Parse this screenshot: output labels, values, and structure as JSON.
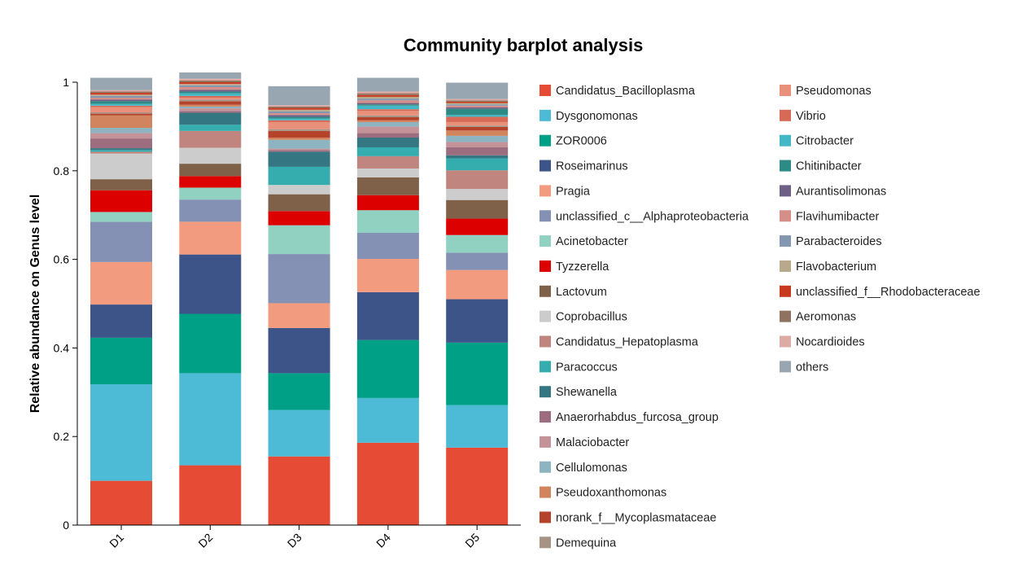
{
  "chart_data": {
    "type": "bar",
    "stacked": true,
    "title": "Community barplot analysis",
    "xlabel": "",
    "ylabel": "Relative abundance on Genus level",
    "ylim": [
      0,
      1
    ],
    "yticks": [
      0,
      0.2,
      0.4,
      0.6,
      0.8,
      1
    ],
    "ytick_labels": [
      "0",
      "0.2",
      "0.4",
      "0.6",
      "0.8",
      "1"
    ],
    "categories": [
      "D1",
      "D2",
      "D3",
      "D4",
      "D5"
    ],
    "legend_position": "right, two columns",
    "series": [
      {
        "name": "Candidatus_Bacilloplasma",
        "color": "#E64B35",
        "values": [
          0.1,
          0.135,
          0.155,
          0.186,
          0.175
        ]
      },
      {
        "name": "Dysgonomonas",
        "color": "#4DBBD5",
        "values": [
          0.218,
          0.208,
          0.105,
          0.101,
          0.096
        ]
      },
      {
        "name": "ZOR0006",
        "color": "#00A087",
        "values": [
          0.105,
          0.134,
          0.083,
          0.131,
          0.141
        ]
      },
      {
        "name": "Roseimarinus",
        "color": "#3C5488",
        "values": [
          0.075,
          0.134,
          0.102,
          0.108,
          0.098
        ]
      },
      {
        "name": "Pragia",
        "color": "#F39B7F",
        "values": [
          0.096,
          0.074,
          0.056,
          0.075,
          0.066
        ]
      },
      {
        "name": "unclassified_c__Alphaproteobacteria",
        "color": "#8491B4",
        "values": [
          0.091,
          0.05,
          0.111,
          0.059,
          0.039
        ]
      },
      {
        "name": "Acinetobacter",
        "color": "#91D1C2",
        "values": [
          0.022,
          0.027,
          0.065,
          0.051,
          0.04
        ]
      },
      {
        "name": "Tyzzerella",
        "color": "#DC0000",
        "values": [
          0.049,
          0.026,
          0.032,
          0.034,
          0.037
        ]
      },
      {
        "name": "Lactovum",
        "color": "#7E6148",
        "values": [
          0.025,
          0.028,
          0.038,
          0.04,
          0.042
        ]
      },
      {
        "name": "Coprobacillus",
        "color": "#CCCCCC",
        "values": [
          0.058,
          0.036,
          0.021,
          0.02,
          0.025
        ]
      },
      {
        "name": "Candidatus_Hepatoplasma",
        "color": "#C0857E",
        "values": [
          0.004,
          0.038,
          0.0,
          0.028,
          0.042
        ]
      },
      {
        "name": "Paracoccus",
        "color": "#35ACAE",
        "values": [
          0.004,
          0.014,
          0.041,
          0.02,
          0.027
        ]
      },
      {
        "name": "Shewanella",
        "color": "#357683",
        "values": [
          0.004,
          0.027,
          0.034,
          0.022,
          0.007
        ]
      },
      {
        "name": "Anaerorhabdus_furcosa_group",
        "color": "#9B6D7E",
        "values": [
          0.022,
          0.004,
          0.004,
          0.01,
          0.018
        ]
      },
      {
        "name": "Malaciobacter",
        "color": "#C4939A",
        "values": [
          0.012,
          0.006,
          0.003,
          0.015,
          0.012
        ]
      },
      {
        "name": "Cellulomonas",
        "color": "#8DB4C0",
        "values": [
          0.012,
          0.004,
          0.02,
          0.01,
          0.014
        ]
      },
      {
        "name": "Pseudoxanthomonas",
        "color": "#D2845E",
        "values": [
          0.028,
          0.004,
          0.005,
          0.004,
          0.012
        ]
      },
      {
        "name": "norank_f__Mycoplasmataceae",
        "color": "#B5432C",
        "values": [
          0.004,
          0.008,
          0.015,
          0.007,
          0.008
        ]
      },
      {
        "name": "Demequina",
        "color": "#A69385",
        "values": [
          0.003,
          0.004,
          0.004,
          0.004,
          0.003
        ]
      },
      {
        "name": "Pseudomonas",
        "color": "#E9907B",
        "values": [
          0.012,
          0.004,
          0.016,
          0.01,
          0.008
        ]
      },
      {
        "name": "Vibrio",
        "color": "#D66A57",
        "values": [
          0.003,
          0.004,
          0.004,
          0.004,
          0.012
        ]
      },
      {
        "name": "Citrobacter",
        "color": "#43B7C6",
        "values": [
          0.004,
          0.006,
          0.004,
          0.008,
          0.004
        ]
      },
      {
        "name": "Chitinibacter",
        "color": "#2D8A85",
        "values": [
          0.006,
          0.004,
          0.004,
          0.003,
          0.014
        ]
      },
      {
        "name": "Aurantisolimonas",
        "color": "#6E5F86",
        "values": [
          0.004,
          0.004,
          0.004,
          0.003,
          0.003
        ]
      },
      {
        "name": "Flavihumibacter",
        "color": "#D68E88",
        "values": [
          0.004,
          0.006,
          0.004,
          0.006,
          0.004
        ]
      },
      {
        "name": "Parabacteroides",
        "color": "#8497B0",
        "values": [
          0.004,
          0.004,
          0.004,
          0.004,
          0.003
        ]
      },
      {
        "name": "Flavobacterium",
        "color": "#B8A88C",
        "values": [
          0.003,
          0.003,
          0.004,
          0.004,
          0.003
        ]
      },
      {
        "name": "unclassified_f__Rhodobacteraceae",
        "color": "#C83A20",
        "values": [
          0.004,
          0.004,
          0.004,
          0.004,
          0.003
        ]
      },
      {
        "name": "Aeromonas",
        "color": "#8F7260",
        "values": [
          0.003,
          0.004,
          0.003,
          0.004,
          0.003
        ]
      },
      {
        "name": "Nocardioides",
        "color": "#DEAAA4",
        "values": [
          0.003,
          0.004,
          0.003,
          0.004,
          0.003
        ]
      },
      {
        "name": "others",
        "color": "#97A6B0",
        "values": [
          0.028,
          0.014,
          0.043,
          0.031,
          0.037
        ]
      }
    ]
  }
}
